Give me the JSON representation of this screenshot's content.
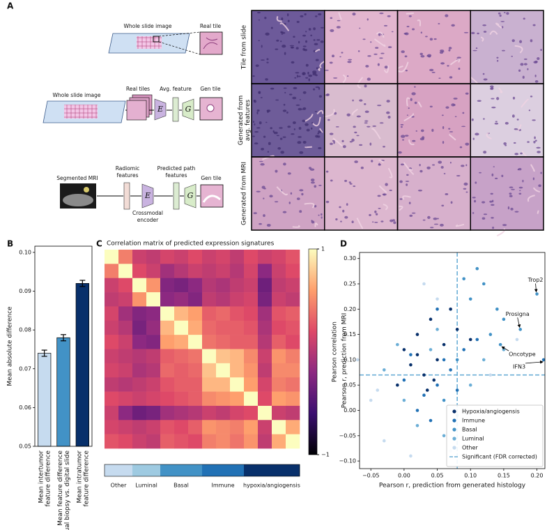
{
  "panel_labels": [
    "A",
    "B",
    "C",
    "D"
  ],
  "panel_a": {
    "row_labels": [
      "Tile from slide",
      "Generated from\navg. features",
      "Generated from MRI"
    ],
    "diagram": {
      "wsi_1": "Whole slide image",
      "real_tile": "Real tile",
      "wsi_2": "Whole slide image",
      "real_tiles": "Real tiles",
      "avg_feature": "Avg. feature",
      "gen_tile_1": "Gen tile",
      "encoder_1": "E",
      "generator_1": "G",
      "mri": "Segmented MRI",
      "radiomic": "Radiomic\nfeatures",
      "predicted": "Predicted path\nfeatures",
      "encoder_2": "E",
      "crossmodal": "Crossmodal\nencoder",
      "generator_2": "G",
      "gen_tile_2": "Gen tile"
    }
  },
  "chart_data": [
    {
      "type": "bar",
      "categories": [
        "Mean intertumor\nfeature difference",
        "Mean feature difference\nvirtual biopsy vs. digital slide",
        "Mean intratumor\nfeature difference"
      ],
      "values": [
        0.074,
        0.078,
        0.092
      ],
      "errors": [
        0.0008,
        0.0008,
        0.0008
      ],
      "colors": [
        "#c6dbef",
        "#4292c6",
        "#08306b"
      ],
      "ylabel": "Mean absolute difference",
      "ylim": [
        0.05,
        0.1016
      ],
      "yticks": [
        0.05,
        0.06,
        0.07,
        0.08,
        0.09,
        {
          "value": 0.1,
          "label": "0.10"
        }
      ]
    },
    {
      "type": "heatmap",
      "title": "Correlation matrix of predicted expression signatures",
      "matrix": [
        [
          1,
          0.45,
          0.1,
          0.05,
          0.15,
          0.1,
          0.2,
          0.1,
          0.15,
          0.05,
          0.2,
          0.1,
          0.15,
          0.25
        ],
        [
          0.45,
          1,
          0.2,
          0.1,
          -0.1,
          0,
          0.1,
          0.05,
          0.1,
          0,
          0.15,
          -0.2,
          0.1,
          0.2
        ],
        [
          0.1,
          0.2,
          1,
          0.55,
          -0.25,
          -0.3,
          -0.2,
          0,
          -0.05,
          0.05,
          0.1,
          -0.35,
          0.05,
          0.1
        ],
        [
          0.05,
          0.1,
          0.55,
          1,
          -0.2,
          -0.15,
          -0.25,
          0.05,
          0,
          0.1,
          0.15,
          -0.3,
          0.1,
          0.05
        ],
        [
          0.15,
          -0.1,
          -0.25,
          -0.2,
          1,
          0.7,
          0.6,
          0.3,
          0.35,
          0.25,
          0.2,
          -0.1,
          0.25,
          0.3
        ],
        [
          0.1,
          0,
          -0.3,
          -0.15,
          0.7,
          1,
          0.65,
          0.35,
          0.3,
          0.3,
          0.25,
          -0.05,
          0.2,
          0.25
        ],
        [
          0.2,
          0.1,
          -0.2,
          -0.25,
          0.6,
          0.65,
          1,
          0.4,
          0.35,
          0.3,
          0.3,
          0,
          0.3,
          0.2
        ],
        [
          0.1,
          0.05,
          0,
          0.05,
          0.3,
          0.35,
          0.4,
          1,
          0.75,
          0.7,
          0.5,
          0.1,
          0.55,
          0.45
        ],
        [
          0.15,
          0.1,
          -0.05,
          0,
          0.35,
          0.3,
          0.35,
          0.75,
          1,
          0.7,
          0.55,
          0.05,
          0.5,
          0.5
        ],
        [
          0.05,
          0,
          0.05,
          0.1,
          0.25,
          0.3,
          0.3,
          0.7,
          0.7,
          1,
          0.6,
          0.15,
          0.45,
          0.4
        ],
        [
          0.2,
          0.15,
          0.1,
          0.15,
          0.2,
          0.25,
          0.3,
          0.5,
          0.55,
          0.6,
          1,
          0.2,
          0.6,
          0.55
        ],
        [
          0.1,
          -0.2,
          -0.35,
          -0.3,
          -0.1,
          -0.05,
          0,
          0.1,
          0.05,
          0.15,
          0.2,
          1,
          0.1,
          0.05
        ],
        [
          0.15,
          0.1,
          0.05,
          0.1,
          0.25,
          0.2,
          0.3,
          0.55,
          0.5,
          0.45,
          0.6,
          0.1,
          1,
          0.65
        ],
        [
          0.25,
          0.2,
          0.1,
          0.05,
          0.3,
          0.25,
          0.2,
          0.45,
          0.5,
          0.4,
          0.55,
          0.05,
          0.65,
          1
        ]
      ],
      "zlim": [
        -1,
        1
      ],
      "zticks": [
        1,
        {
          "value": -1,
          "label": "−1"
        }
      ],
      "colorbar_label": "Pearson correlation",
      "colormap": [
        "#000004",
        "#3b0f70",
        "#8c2981",
        "#de4968",
        "#fe9f6d",
        "#fcfdbf"
      ],
      "groups": [
        "Other",
        "Luminal",
        "Basal",
        "Immune",
        "hypoxia/angiogensis"
      ],
      "group_colors": [
        "#c6dbef",
        "#9ecae1",
        "#4292c6",
        "#2171b5",
        "#08306b"
      ],
      "row_group": [
        0,
        0,
        1,
        1,
        2,
        2,
        2,
        3,
        3,
        3,
        4,
        4,
        4,
        4
      ]
    },
    {
      "type": "scatter",
      "xlabel": "Pearson r, prediction from generated histology",
      "ylabel": "Pearson r, prediction from MRI",
      "xlim": [
        -0.067,
        0.212
      ],
      "ylim": [
        -0.115,
        0.312
      ],
      "xticks": [
        {
          "value": -0.05,
          "label": "−0.05"
        },
        {
          "value": 0,
          "label": "0.00"
        },
        0.05,
        {
          "value": 0.1,
          "label": "0.10"
        },
        0.15,
        {
          "value": 0.2,
          "label": "0.20"
        }
      ],
      "yticks": [
        {
          "value": -0.1,
          "label": "−0.10"
        },
        {
          "value": -0.05,
          "label": "−0.05"
        },
        {
          "value": 0,
          "label": "0.00"
        },
        0.05,
        {
          "value": 0.1,
          "label": "0.10"
        },
        0.15,
        {
          "value": 0.2,
          "label": "0.20"
        },
        0.25,
        {
          "value": 0.3,
          "label": "0.30"
        }
      ],
      "series": [
        {
          "name": "Hypoxia/angiogensis",
          "color": "#08306b",
          "x": [
            0,
            0.02,
            0.04,
            0.05,
            0.03,
            -0.01,
            0.06,
            0.08,
            0.01,
            0.035,
            0.07,
            0.1,
            0.02,
            0.045
          ],
          "y": [
            0.12,
            0.15,
            0.18,
            0.1,
            0.07,
            0.05,
            0.13,
            0.16,
            0.09,
            0.04,
            0.2,
            0.14,
            0.11,
            0.06
          ]
        },
        {
          "name": "Immune",
          "color": "#2171b5",
          "x": [
            0.03,
            0.05,
            0.07,
            0.02,
            0.04,
            0.06,
            0,
            0.09,
            0.11,
            0.05,
            0.01,
            0.08,
            0.21
          ],
          "y": [
            0.03,
            0.05,
            0.08,
            0,
            -0.02,
            0.1,
            0.06,
            0.12,
            0.14,
            0.2,
            0.11,
            0.04,
            0.1
          ]
        },
        {
          "name": "Basal",
          "color": "#4292c6",
          "x": [
            0.1,
            0.12,
            0.14,
            0.13,
            0.15,
            0.09,
            0.11,
            0.2,
            0.175,
            0.145,
            0.08,
            0.06
          ],
          "y": [
            0.22,
            0.25,
            0.2,
            0.15,
            0.18,
            0.26,
            0.28,
            0.23,
            0.16,
            0.13,
            0.1,
            0.02
          ]
        },
        {
          "name": "Luminal",
          "color": "#6baed6",
          "x": [
            -0.03,
            0,
            0.02,
            0.04,
            0.06,
            0.1,
            0.12,
            0.08,
            0.15,
            -0.01,
            0.05
          ],
          "y": [
            0.08,
            0.02,
            -0.03,
            0.12,
            -0.05,
            0.05,
            0.1,
            -0.01,
            0.12,
            0.13,
            0.16
          ]
        },
        {
          "name": "Other",
          "color": "#c6dbef",
          "x": [
            -0.07,
            -0.05,
            -0.03,
            0.01,
            0.05,
            0.09,
            0.13,
            0.17,
            0.03,
            -0.04,
            0.07
          ],
          "y": [
            0.1,
            0.02,
            -0.06,
            -0.09,
            0.22,
            0,
            0.07,
            0.14,
            0.25,
            0.04,
            -0.08
          ]
        }
      ],
      "reference": {
        "name": "Significant (FDR corrected)",
        "x": 0.08,
        "y": 0.07,
        "color": "#6baed6"
      },
      "annotations": [
        {
          "text": "Trop2",
          "x": 0.2,
          "y": 0.23
        },
        {
          "text": "Prosigna",
          "x": 0.175,
          "y": 0.16
        },
        {
          "text": "Oncotype",
          "x": 0.145,
          "y": 0.13
        },
        {
          "text": "IFN3",
          "x": 0.21,
          "y": 0.1
        }
      ],
      "legend": "lower right"
    }
  ]
}
